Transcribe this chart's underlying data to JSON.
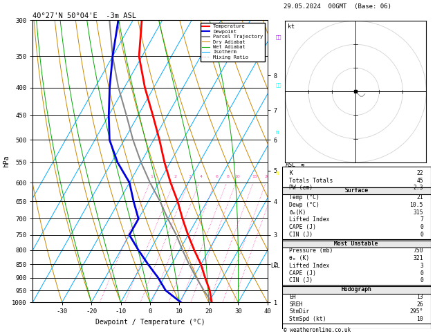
{
  "title_left": "40°27'N 50°04'E  -3m ASL",
  "title_right": "29.05.2024  00GMT  (Base: 06)",
  "xlabel": "Dewpoint / Temperature (°C)",
  "ylabel_left": "hPa",
  "pressure_levels": [
    300,
    350,
    400,
    450,
    500,
    550,
    600,
    650,
    700,
    750,
    800,
    850,
    900,
    950,
    1000
  ],
  "temp_ticks": [
    -30,
    -20,
    -10,
    0,
    10,
    20,
    30,
    40
  ],
  "skew": 45,
  "isotherm_temps": [
    -60,
    -50,
    -40,
    -30,
    -20,
    -10,
    0,
    10,
    20,
    30,
    40,
    50
  ],
  "dry_adiabat_pottemps": [
    -40,
    -30,
    -20,
    -10,
    0,
    10,
    20,
    30,
    40,
    50,
    60,
    70,
    80,
    90,
    100,
    110
  ],
  "wet_adiabat_T0s": [
    -20,
    -10,
    0,
    10,
    20,
    30
  ],
  "mixing_ratio_values": [
    1,
    2,
    3,
    4,
    6,
    8,
    10,
    15,
    20,
    25
  ],
  "temp_profile_p": [
    1000,
    950,
    900,
    850,
    800,
    750,
    700,
    650,
    600,
    550,
    500,
    450,
    400,
    350,
    300
  ],
  "temp_profile_t": [
    21,
    18,
    14,
    10,
    5,
    0,
    -5,
    -10,
    -16,
    -22,
    -28,
    -35,
    -43,
    -51,
    -57
  ],
  "dewp_profile_p": [
    1000,
    950,
    900,
    850,
    800,
    750,
    700,
    650,
    600,
    550,
    500,
    450,
    400,
    350,
    300
  ],
  "dewp_profile_t": [
    10.5,
    3,
    -2,
    -8,
    -14,
    -20,
    -20,
    -25,
    -30,
    -38,
    -45,
    -50,
    -55,
    -60,
    -65
  ],
  "parcel_profile_p": [
    1000,
    950,
    900,
    850,
    800,
    750,
    700,
    650,
    600,
    550,
    500,
    450,
    400,
    350,
    300
  ],
  "parcel_profile_t": [
    21,
    16,
    11,
    6,
    1,
    -4,
    -10,
    -16,
    -23,
    -30,
    -37,
    -44,
    -52,
    -60,
    -68
  ],
  "lcl_pressure": 855,
  "color_temp": "#ff0000",
  "color_dewp": "#0000dd",
  "color_parcel": "#888888",
  "color_dry_adiabat": "#cc8800",
  "color_wet_adiabat": "#00aa00",
  "color_isotherm": "#00aaff",
  "color_mixing_ratio": "#ff44aa",
  "km_ticks": [
    1,
    2,
    3,
    4,
    5,
    6,
    7,
    8
  ],
  "km_pressures": [
    1000,
    850,
    750,
    650,
    570,
    500,
    440,
    380
  ],
  "indices": {
    "K": 22,
    "Totals Totals": 45,
    "PW (cm)": 2.3,
    "Surface_Temp": 21,
    "Surface_Dewp": 10.5,
    "Surface_theta_e": 315,
    "Surface_LI": 7,
    "Surface_CAPE": 0,
    "Surface_CIN": 0,
    "MU_Pressure": 750,
    "MU_theta_e": 321,
    "MU_LI": 3,
    "MU_CAPE": 0,
    "MU_CIN": 0,
    "Hodo_EH": 13,
    "Hodo_SREH": 26,
    "Hodo_StmDir": "295°",
    "Hodo_StmSpd": 10
  },
  "hodo_u": [
    0,
    1,
    2,
    3,
    4
  ],
  "hodo_v": [
    0,
    -1,
    -2,
    -2,
    -1
  ]
}
